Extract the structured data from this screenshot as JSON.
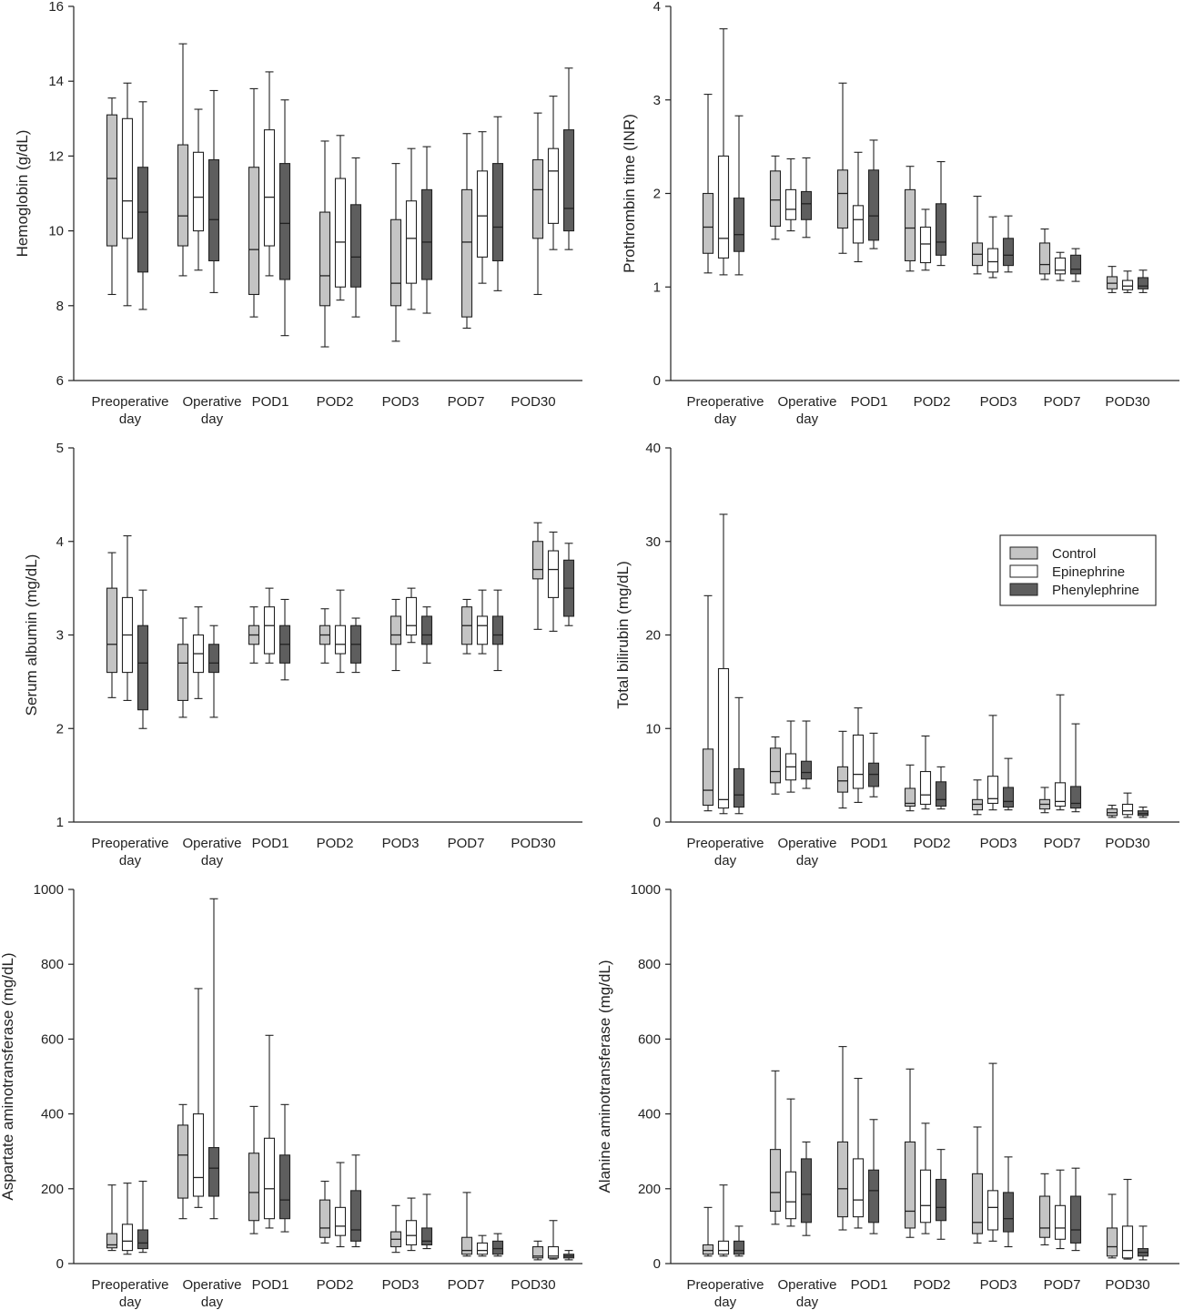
{
  "series": [
    {
      "name": "Control",
      "color": "#c4c4c4"
    },
    {
      "name": "Epinephrine",
      "color": "#ffffff"
    },
    {
      "name": "Phenylephrine",
      "color": "#5e5e5e"
    }
  ],
  "chart_data": [
    {
      "type": "box",
      "ylabel": "Hemoglobin (g/dL)",
      "ylim": [
        6,
        16
      ],
      "yticks": [
        6,
        8,
        10,
        12,
        14,
        16
      ],
      "categories": [
        [
          "Preoperative",
          "day"
        ],
        [
          "Operative",
          "day"
        ],
        [
          "POD1"
        ],
        [
          "POD2"
        ],
        [
          "POD3"
        ],
        [
          "POD7"
        ],
        [
          "POD30"
        ]
      ],
      "boxes": [
        [
          [
            8.3,
            9.6,
            11.4,
            13.1,
            13.55
          ],
          [
            8.0,
            9.8,
            10.8,
            13.0,
            13.95
          ],
          [
            7.9,
            8.9,
            10.5,
            11.7,
            13.45
          ]
        ],
        [
          [
            8.8,
            9.6,
            10.4,
            12.3,
            15.0
          ],
          [
            8.95,
            10.0,
            10.9,
            12.1,
            13.25
          ],
          [
            8.35,
            9.2,
            10.3,
            11.9,
            13.75
          ]
        ],
        [
          [
            7.7,
            8.3,
            9.5,
            11.7,
            13.8
          ],
          [
            8.8,
            9.6,
            10.9,
            12.7,
            14.25
          ],
          [
            7.2,
            8.7,
            10.2,
            11.8,
            13.5
          ]
        ],
        [
          [
            6.9,
            8.0,
            8.8,
            10.5,
            12.4
          ],
          [
            8.15,
            8.5,
            9.7,
            11.4,
            12.55
          ],
          [
            7.7,
            8.5,
            9.3,
            10.7,
            11.95
          ]
        ],
        [
          [
            7.05,
            8.0,
            8.6,
            10.3,
            11.8
          ],
          [
            7.9,
            8.6,
            9.8,
            10.8,
            12.2
          ],
          [
            7.8,
            8.7,
            9.7,
            11.1,
            12.25
          ]
        ],
        [
          [
            7.4,
            7.7,
            9.7,
            11.1,
            12.6
          ],
          [
            8.6,
            9.3,
            10.4,
            11.6,
            12.65
          ],
          [
            8.4,
            9.2,
            10.1,
            11.8,
            13.05
          ]
        ],
        [
          [
            8.3,
            9.8,
            11.1,
            11.9,
            13.15
          ],
          [
            9.5,
            10.2,
            11.6,
            12.2,
            13.6
          ],
          [
            9.5,
            10.0,
            10.6,
            12.7,
            14.35
          ]
        ]
      ]
    },
    {
      "type": "box",
      "ylabel": "Prothrombin time (INR)",
      "ylim": [
        0,
        4
      ],
      "yticks": [
        0,
        1,
        2,
        3,
        4
      ],
      "categories": [
        [
          "Preoperative",
          "day"
        ],
        [
          "Operative",
          "day"
        ],
        [
          "POD1"
        ],
        [
          "POD2"
        ],
        [
          "POD3"
        ],
        [
          "POD7"
        ],
        [
          "POD30"
        ]
      ],
      "boxes": [
        [
          [
            1.15,
            1.36,
            1.64,
            2.0,
            3.06
          ],
          [
            1.13,
            1.31,
            1.52,
            2.4,
            3.76
          ],
          [
            1.13,
            1.38,
            1.56,
            1.95,
            2.83
          ]
        ],
        [
          [
            1.51,
            1.65,
            1.93,
            2.24,
            2.4
          ],
          [
            1.6,
            1.72,
            1.83,
            2.04,
            2.37
          ],
          [
            1.53,
            1.72,
            1.89,
            2.02,
            2.38
          ]
        ],
        [
          [
            1.36,
            1.63,
            2.0,
            2.25,
            3.18
          ],
          [
            1.27,
            1.47,
            1.72,
            1.87,
            2.44
          ],
          [
            1.41,
            1.5,
            1.76,
            2.25,
            2.57
          ]
        ],
        [
          [
            1.17,
            1.28,
            1.63,
            2.04,
            2.29
          ],
          [
            1.18,
            1.26,
            1.46,
            1.64,
            1.83
          ],
          [
            1.23,
            1.34,
            1.48,
            1.89,
            2.34
          ]
        ],
        [
          [
            1.14,
            1.23,
            1.35,
            1.47,
            1.97
          ],
          [
            1.1,
            1.16,
            1.27,
            1.41,
            1.75
          ],
          [
            1.16,
            1.23,
            1.34,
            1.52,
            1.76
          ]
        ],
        [
          [
            1.08,
            1.14,
            1.24,
            1.47,
            1.62
          ],
          [
            1.07,
            1.14,
            1.18,
            1.31,
            1.37
          ],
          [
            1.06,
            1.14,
            1.19,
            1.34,
            1.41
          ]
        ],
        [
          [
            0.94,
            0.98,
            1.04,
            1.11,
            1.22
          ],
          [
            0.94,
            0.97,
            1.01,
            1.07,
            1.17
          ],
          [
            0.94,
            0.98,
            1.01,
            1.1,
            1.18
          ]
        ]
      ]
    },
    {
      "type": "box",
      "ylabel": "Serum albumin (mg/dL)",
      "ylim": [
        1,
        5
      ],
      "yticks": [
        1,
        2,
        3,
        4,
        5
      ],
      "categories": [
        [
          "Preoperative",
          "day"
        ],
        [
          "Operative",
          "day"
        ],
        [
          "POD1"
        ],
        [
          "POD2"
        ],
        [
          "POD3"
        ],
        [
          "POD7"
        ],
        [
          "POD30"
        ]
      ],
      "boxes": [
        [
          [
            2.33,
            2.6,
            2.9,
            3.5,
            3.88
          ],
          [
            2.3,
            2.6,
            3.0,
            3.4,
            4.06
          ],
          [
            2.0,
            2.2,
            2.7,
            3.1,
            3.48
          ]
        ],
        [
          [
            2.12,
            2.3,
            2.7,
            2.9,
            3.18
          ],
          [
            2.32,
            2.6,
            2.8,
            3.0,
            3.3
          ],
          [
            2.12,
            2.6,
            2.7,
            2.9,
            3.1
          ]
        ],
        [
          [
            2.7,
            2.9,
            3.0,
            3.1,
            3.3
          ],
          [
            2.7,
            2.8,
            3.1,
            3.3,
            3.5
          ],
          [
            2.52,
            2.7,
            2.9,
            3.1,
            3.38
          ]
        ],
        [
          [
            2.7,
            2.9,
            3.0,
            3.1,
            3.28
          ],
          [
            2.6,
            2.8,
            2.9,
            3.1,
            3.48
          ],
          [
            2.6,
            2.7,
            2.9,
            3.1,
            3.18
          ]
        ],
        [
          [
            2.62,
            2.9,
            3.0,
            3.2,
            3.38
          ],
          [
            2.92,
            3.0,
            3.1,
            3.4,
            3.5
          ],
          [
            2.7,
            2.9,
            3.0,
            3.2,
            3.3
          ]
        ],
        [
          [
            2.8,
            2.9,
            3.1,
            3.3,
            3.38
          ],
          [
            2.8,
            2.9,
            3.1,
            3.2,
            3.48
          ],
          [
            2.62,
            2.9,
            3.0,
            3.2,
            3.48
          ]
        ],
        [
          [
            3.06,
            3.6,
            3.7,
            4.0,
            4.2
          ],
          [
            3.04,
            3.4,
            3.7,
            3.9,
            4.1
          ],
          [
            3.1,
            3.2,
            3.5,
            3.8,
            3.98
          ]
        ]
      ]
    },
    {
      "type": "box",
      "ylabel": "Total bilirubin (mg/dL)",
      "ylim": [
        0,
        40
      ],
      "yticks": [
        0,
        10,
        20,
        30,
        40
      ],
      "categories": [
        [
          "Preoperative",
          "day"
        ],
        [
          "Operative",
          "day"
        ],
        [
          "POD1"
        ],
        [
          "POD2"
        ],
        [
          "POD3"
        ],
        [
          "POD7"
        ],
        [
          "POD30"
        ]
      ],
      "legend": true,
      "boxes": [
        [
          [
            1.2,
            1.8,
            3.4,
            7.8,
            24.2
          ],
          [
            0.9,
            1.5,
            2.4,
            16.4,
            32.9
          ],
          [
            0.9,
            1.6,
            2.9,
            5.7,
            13.3
          ]
        ],
        [
          [
            3.0,
            4.2,
            5.4,
            7.9,
            9.1
          ],
          [
            3.2,
            4.5,
            5.9,
            7.3,
            10.8
          ],
          [
            3.6,
            4.6,
            5.3,
            6.5,
            10.8
          ]
        ],
        [
          [
            1.5,
            3.2,
            4.4,
            5.9,
            9.7
          ],
          [
            2.1,
            3.6,
            5.1,
            9.3,
            12.2
          ],
          [
            2.7,
            3.8,
            5.1,
            6.3,
            9.5
          ]
        ],
        [
          [
            1.2,
            1.7,
            2.0,
            3.6,
            6.1
          ],
          [
            1.4,
            1.9,
            2.9,
            5.4,
            9.2
          ],
          [
            1.4,
            1.7,
            2.4,
            4.3,
            5.9
          ]
        ],
        [
          [
            0.8,
            1.3,
            1.9,
            2.4,
            4.5
          ],
          [
            1.3,
            2.0,
            2.5,
            4.9,
            11.4
          ],
          [
            1.3,
            1.6,
            2.2,
            3.7,
            6.8
          ]
        ],
        [
          [
            1.0,
            1.4,
            1.9,
            2.4,
            3.7
          ],
          [
            1.3,
            1.7,
            2.2,
            4.2,
            13.6
          ],
          [
            1.1,
            1.5,
            2.0,
            3.8,
            10.5
          ]
        ],
        [
          [
            0.5,
            0.7,
            1.0,
            1.4,
            1.8
          ],
          [
            0.5,
            0.8,
            1.2,
            1.9,
            3.1
          ],
          [
            0.5,
            0.7,
            0.9,
            1.2,
            1.6
          ]
        ]
      ]
    },
    {
      "type": "box",
      "ylabel": "Aspartate aminotransferase (mg/dL)",
      "ylim": [
        0,
        1000
      ],
      "yticks": [
        0,
        200,
        400,
        600,
        800,
        1000
      ],
      "categories": [
        [
          "Preoperative",
          "day"
        ],
        [
          "Operative",
          "day"
        ],
        [
          "POD1"
        ],
        [
          "POD2"
        ],
        [
          "POD3"
        ],
        [
          "POD7"
        ],
        [
          "POD30"
        ]
      ],
      "boxes": [
        [
          [
            35,
            42,
            50,
            80,
            210
          ],
          [
            25,
            35,
            60,
            105,
            215
          ],
          [
            30,
            40,
            55,
            90,
            220
          ]
        ],
        [
          [
            120,
            175,
            290,
            370,
            425
          ],
          [
            150,
            180,
            230,
            400,
            735
          ],
          [
            120,
            180,
            255,
            310,
            975
          ]
        ],
        [
          [
            80,
            115,
            190,
            295,
            420
          ],
          [
            95,
            120,
            200,
            335,
            610
          ],
          [
            85,
            120,
            170,
            290,
            425
          ]
        ],
        [
          [
            55,
            70,
            95,
            170,
            220
          ],
          [
            45,
            75,
            100,
            150,
            270
          ],
          [
            45,
            60,
            90,
            195,
            290
          ]
        ],
        [
          [
            30,
            45,
            65,
            85,
            155
          ],
          [
            35,
            50,
            75,
            115,
            175
          ],
          [
            40,
            50,
            60,
            95,
            185
          ]
        ],
        [
          [
            20,
            25,
            35,
            70,
            190
          ],
          [
            20,
            25,
            35,
            55,
            75
          ],
          [
            20,
            25,
            40,
            60,
            80
          ]
        ],
        [
          [
            10,
            15,
            20,
            45,
            60
          ],
          [
            12,
            15,
            20,
            45,
            115
          ],
          [
            10,
            15,
            20,
            25,
            35
          ]
        ]
      ]
    },
    {
      "type": "box",
      "ylabel": "Alanine aminotransferase (mg/dL)",
      "ylim": [
        0,
        1000
      ],
      "yticks": [
        0,
        200,
        400,
        600,
        800,
        1000
      ],
      "categories": [
        [
          "Preoperative",
          "day"
        ],
        [
          "Operative",
          "day"
        ],
        [
          "POD1"
        ],
        [
          "POD2"
        ],
        [
          "POD3"
        ],
        [
          "POD7"
        ],
        [
          "POD30"
        ]
      ],
      "boxes": [
        [
          [
            20,
            25,
            35,
            50,
            150
          ],
          [
            20,
            25,
            35,
            60,
            210
          ],
          [
            20,
            25,
            35,
            60,
            100
          ]
        ],
        [
          [
            105,
            140,
            190,
            305,
            515
          ],
          [
            100,
            120,
            165,
            245,
            440
          ],
          [
            75,
            110,
            185,
            280,
            325
          ]
        ],
        [
          [
            90,
            125,
            200,
            325,
            580
          ],
          [
            95,
            125,
            170,
            280,
            495
          ],
          [
            80,
            110,
            195,
            250,
            385
          ]
        ],
        [
          [
            70,
            95,
            140,
            325,
            520
          ],
          [
            80,
            110,
            155,
            250,
            375
          ],
          [
            65,
            115,
            150,
            225,
            305
          ]
        ],
        [
          [
            55,
            80,
            110,
            240,
            365
          ],
          [
            60,
            90,
            150,
            195,
            535
          ],
          [
            45,
            85,
            120,
            190,
            285
          ]
        ],
        [
          [
            50,
            70,
            95,
            180,
            240
          ],
          [
            40,
            65,
            95,
            155,
            250
          ],
          [
            35,
            55,
            90,
            180,
            255
          ]
        ],
        [
          [
            15,
            20,
            45,
            95,
            185
          ],
          [
            12,
            15,
            35,
            100,
            225
          ],
          [
            10,
            20,
            30,
            40,
            100
          ]
        ]
      ]
    }
  ]
}
